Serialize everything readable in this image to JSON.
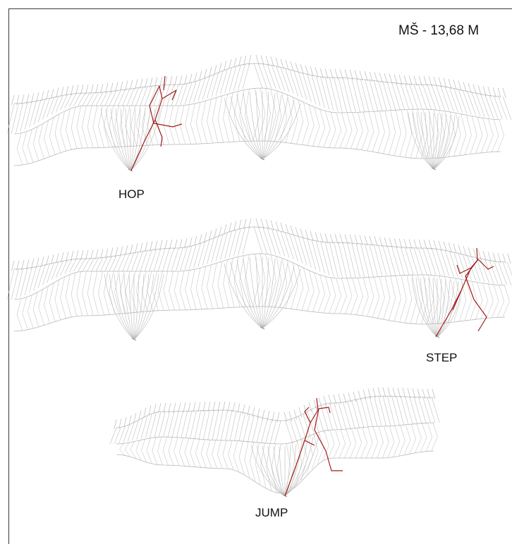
{
  "scale_label": "MŠ - 13,68 M",
  "panels": [
    {
      "label": "HOP"
    },
    {
      "label": "STEP"
    },
    {
      "label": "JUMP"
    }
  ],
  "colors": {
    "structure": "#b9b9b9",
    "figure": "#a31b1b",
    "frame": "#3a3a3a",
    "text": "#111111"
  }
}
